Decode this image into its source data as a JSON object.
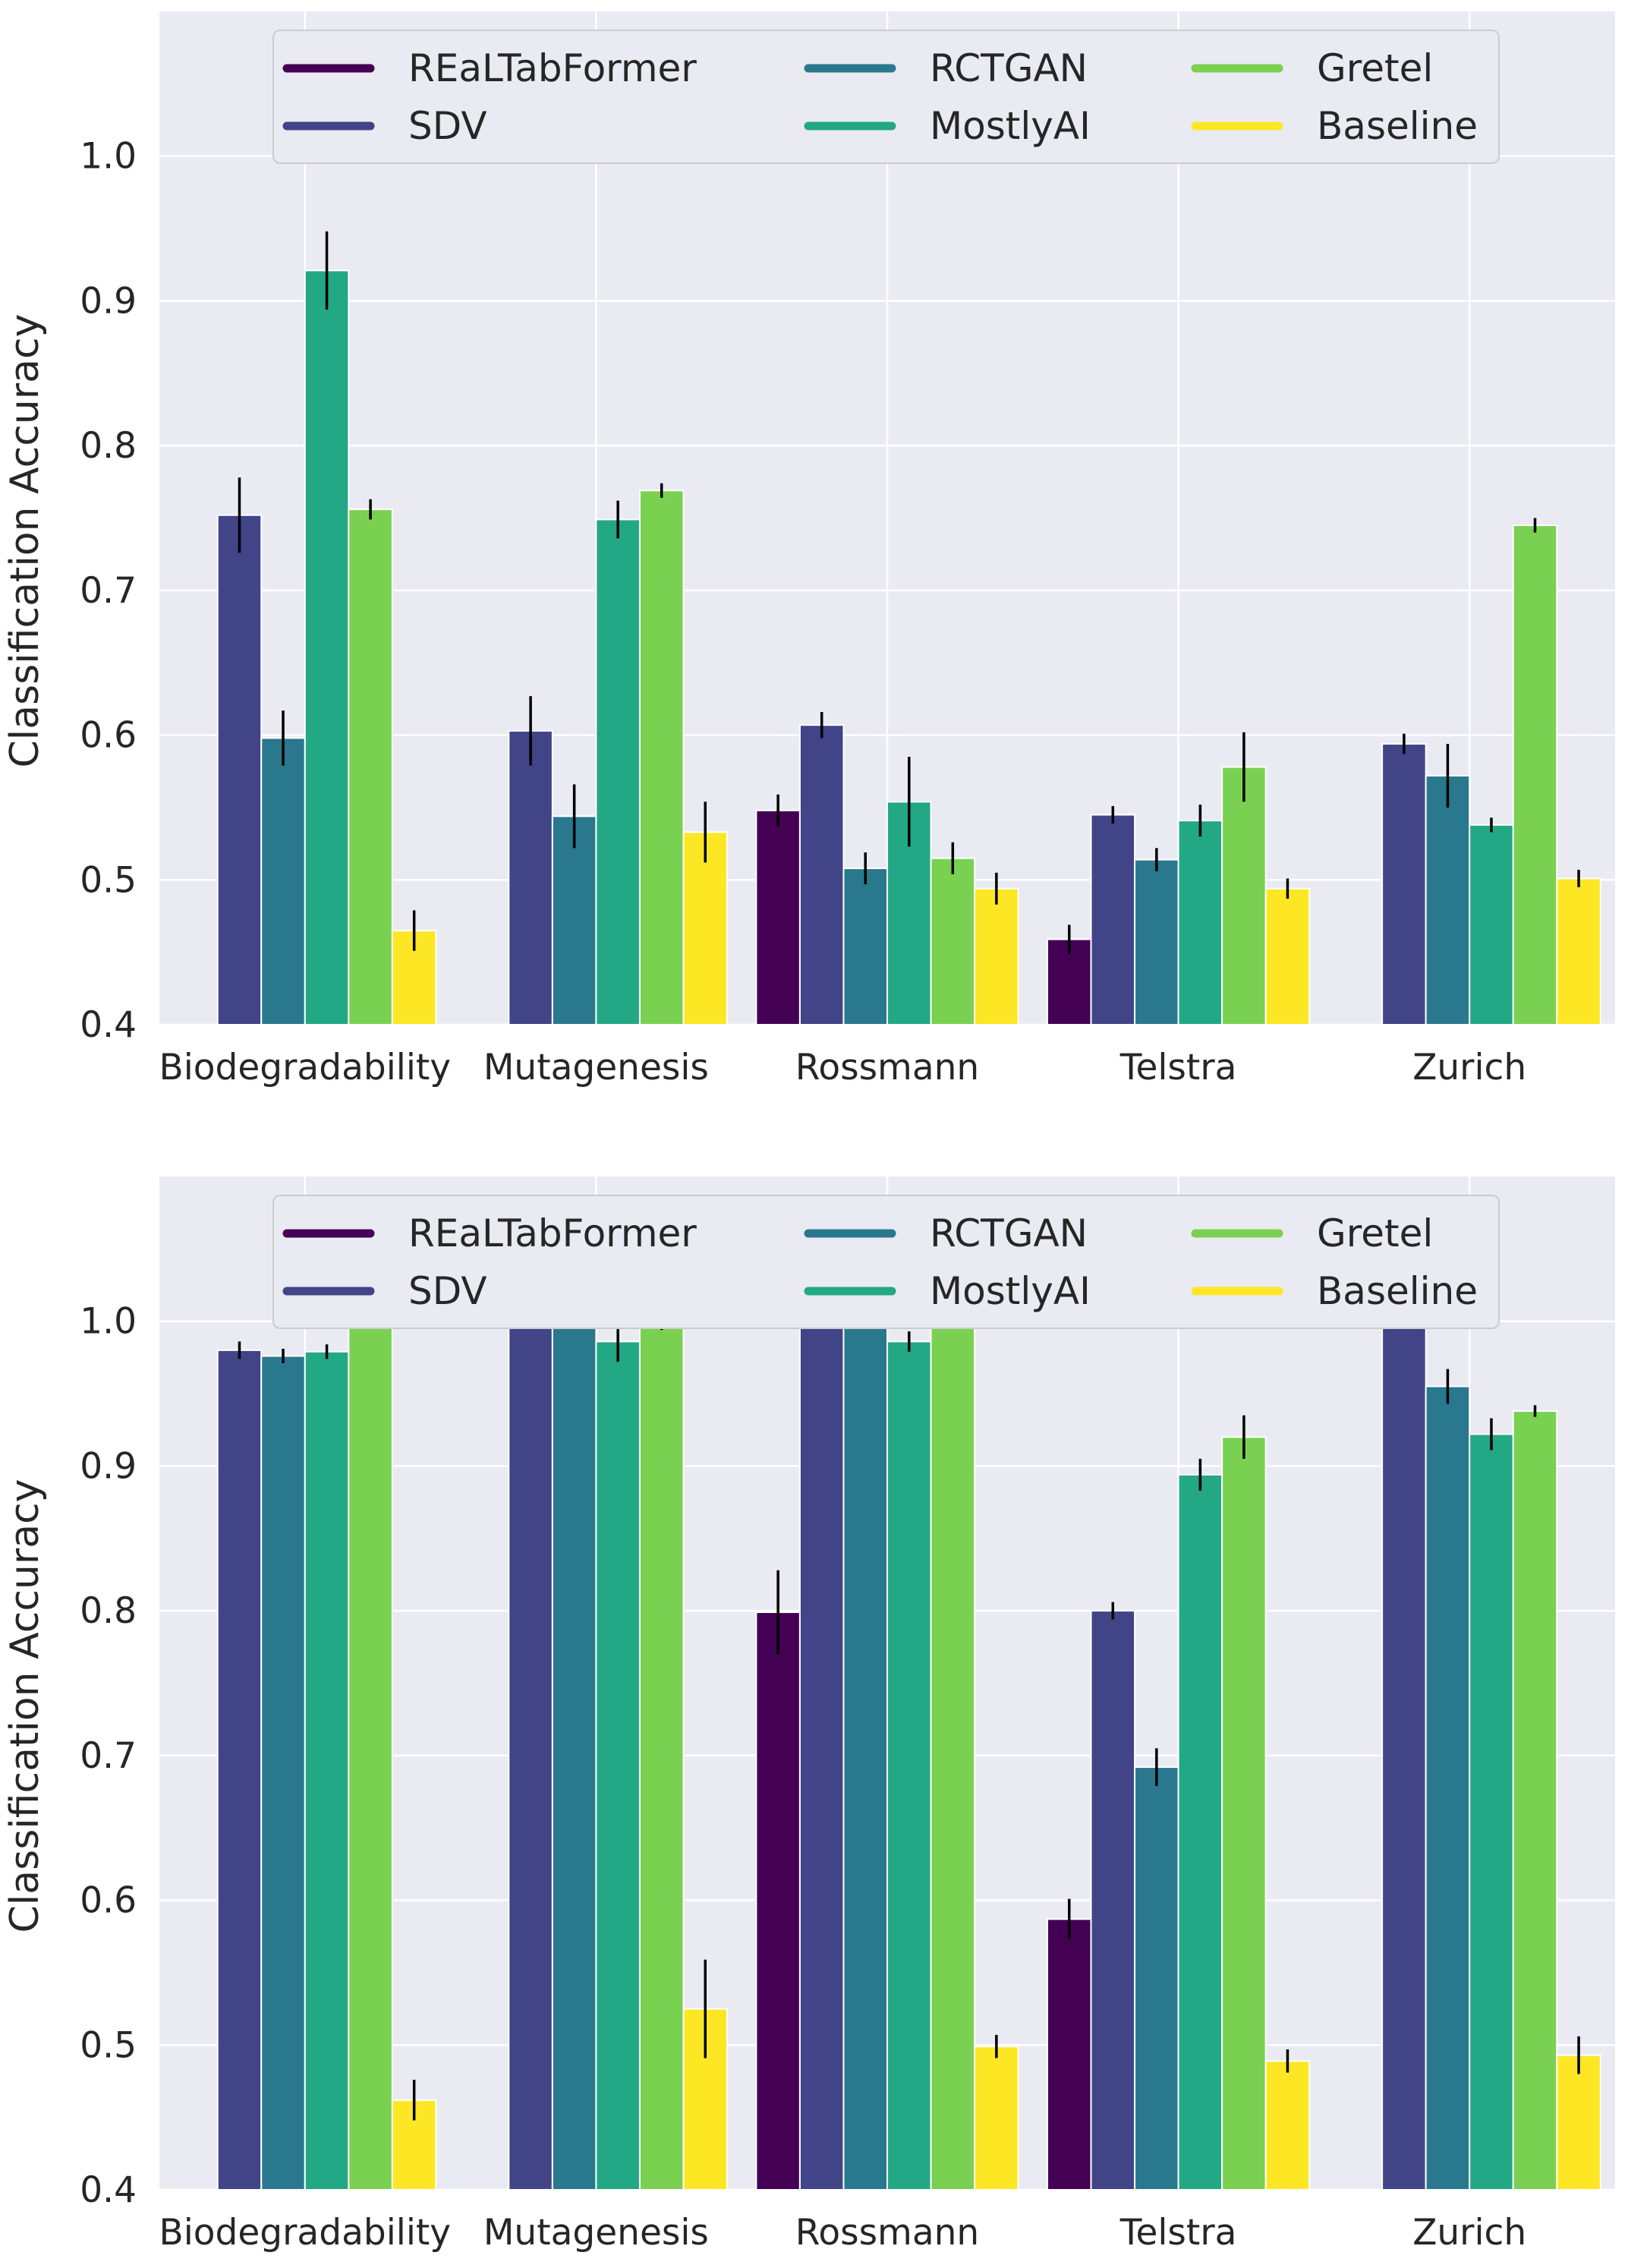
{
  "colors": {
    "REaLTabFormer": "#440154",
    "SDV": "#414487",
    "RCTGAN": "#2a788e",
    "MostlyAI": "#22a884",
    "Gretel": "#7ad151",
    "Baseline": "#fde725",
    "plot_bg": "#eaeaf2",
    "grid": "#ffffff",
    "legend_bg": "#eaeaf2",
    "legend_border": "#cccccc",
    "error_bar": "#000000"
  },
  "chart_data": [
    {
      "type": "bar",
      "title": "",
      "xlabel": "",
      "ylabel": "Classification Accuracy",
      "ylim": [
        0.4,
        1.1
      ],
      "yticks": [
        "0.4",
        "0.5",
        "0.6",
        "0.7",
        "0.8",
        "0.9",
        "1.0"
      ],
      "grid": true,
      "legend_position": "top-center",
      "categories": [
        "Biodegradability",
        "Mutagenesis",
        "Rossmann",
        "Telstra",
        "Zurich"
      ],
      "series": [
        {
          "name": "REaLTabFormer",
          "values": [
            null,
            null,
            0.548,
            0.459,
            null
          ],
          "errors": [
            null,
            null,
            0.011,
            0.01,
            null
          ]
        },
        {
          "name": "SDV",
          "values": [
            0.752,
            0.603,
            0.607,
            0.545,
            0.594
          ],
          "errors": [
            0.026,
            0.024,
            0.009,
            0.006,
            0.007
          ]
        },
        {
          "name": "RCTGAN",
          "values": [
            0.598,
            0.544,
            0.508,
            0.514,
            0.572
          ],
          "errors": [
            0.019,
            0.022,
            0.011,
            0.008,
            0.022
          ]
        },
        {
          "name": "MostlyAI",
          "values": [
            0.921,
            0.749,
            0.554,
            0.541,
            0.538
          ],
          "errors": [
            0.027,
            0.013,
            0.031,
            0.011,
            0.005
          ]
        },
        {
          "name": "Gretel",
          "values": [
            0.756,
            0.769,
            0.515,
            0.578,
            0.745
          ],
          "errors": [
            0.007,
            0.005,
            0.011,
            0.024,
            0.005
          ]
        },
        {
          "name": "Baseline",
          "values": [
            0.465,
            0.533,
            0.494,
            0.494,
            0.501
          ],
          "errors": [
            0.014,
            0.021,
            0.011,
            0.007,
            0.006
          ]
        }
      ]
    },
    {
      "type": "bar",
      "title": "",
      "xlabel": "",
      "ylabel": "Classification Accuracy",
      "ylim": [
        0.4,
        1.1
      ],
      "yticks": [
        "0.4",
        "0.5",
        "0.6",
        "0.7",
        "0.8",
        "0.9",
        "1.0"
      ],
      "grid": true,
      "legend_position": "top-center",
      "categories": [
        "Biodegradability",
        "Mutagenesis",
        "Rossmann",
        "Telstra",
        "Zurich"
      ],
      "series": [
        {
          "name": "REaLTabFormer",
          "values": [
            null,
            null,
            0.799,
            0.587,
            null
          ],
          "errors": [
            null,
            null,
            0.029,
            0.014,
            null
          ]
        },
        {
          "name": "SDV",
          "values": [
            0.98,
            0.998,
            0.998,
            0.8,
            0.997
          ],
          "errors": [
            0.006,
            0.002,
            0.002,
            0.006,
            0.002
          ]
        },
        {
          "name": "RCTGAN",
          "values": [
            0.976,
            0.999,
            0.998,
            0.692,
            0.955
          ],
          "errors": [
            0.005,
            0.001,
            0.002,
            0.013,
            0.012
          ]
        },
        {
          "name": "MostlyAI",
          "values": [
            0.979,
            0.986,
            0.986,
            0.894,
            0.922
          ],
          "errors": [
            0.005,
            0.014,
            0.007,
            0.011,
            0.011
          ]
        },
        {
          "name": "Gretel",
          "values": [
            0.999,
            0.997,
            0.998,
            0.92,
            0.938
          ],
          "errors": [
            0.001,
            0.003,
            0.002,
            0.015,
            0.004
          ]
        },
        {
          "name": "Baseline",
          "values": [
            0.462,
            0.525,
            0.499,
            0.489,
            0.493
          ],
          "errors": [
            0.014,
            0.034,
            0.008,
            0.008,
            0.013
          ]
        }
      ]
    }
  ]
}
